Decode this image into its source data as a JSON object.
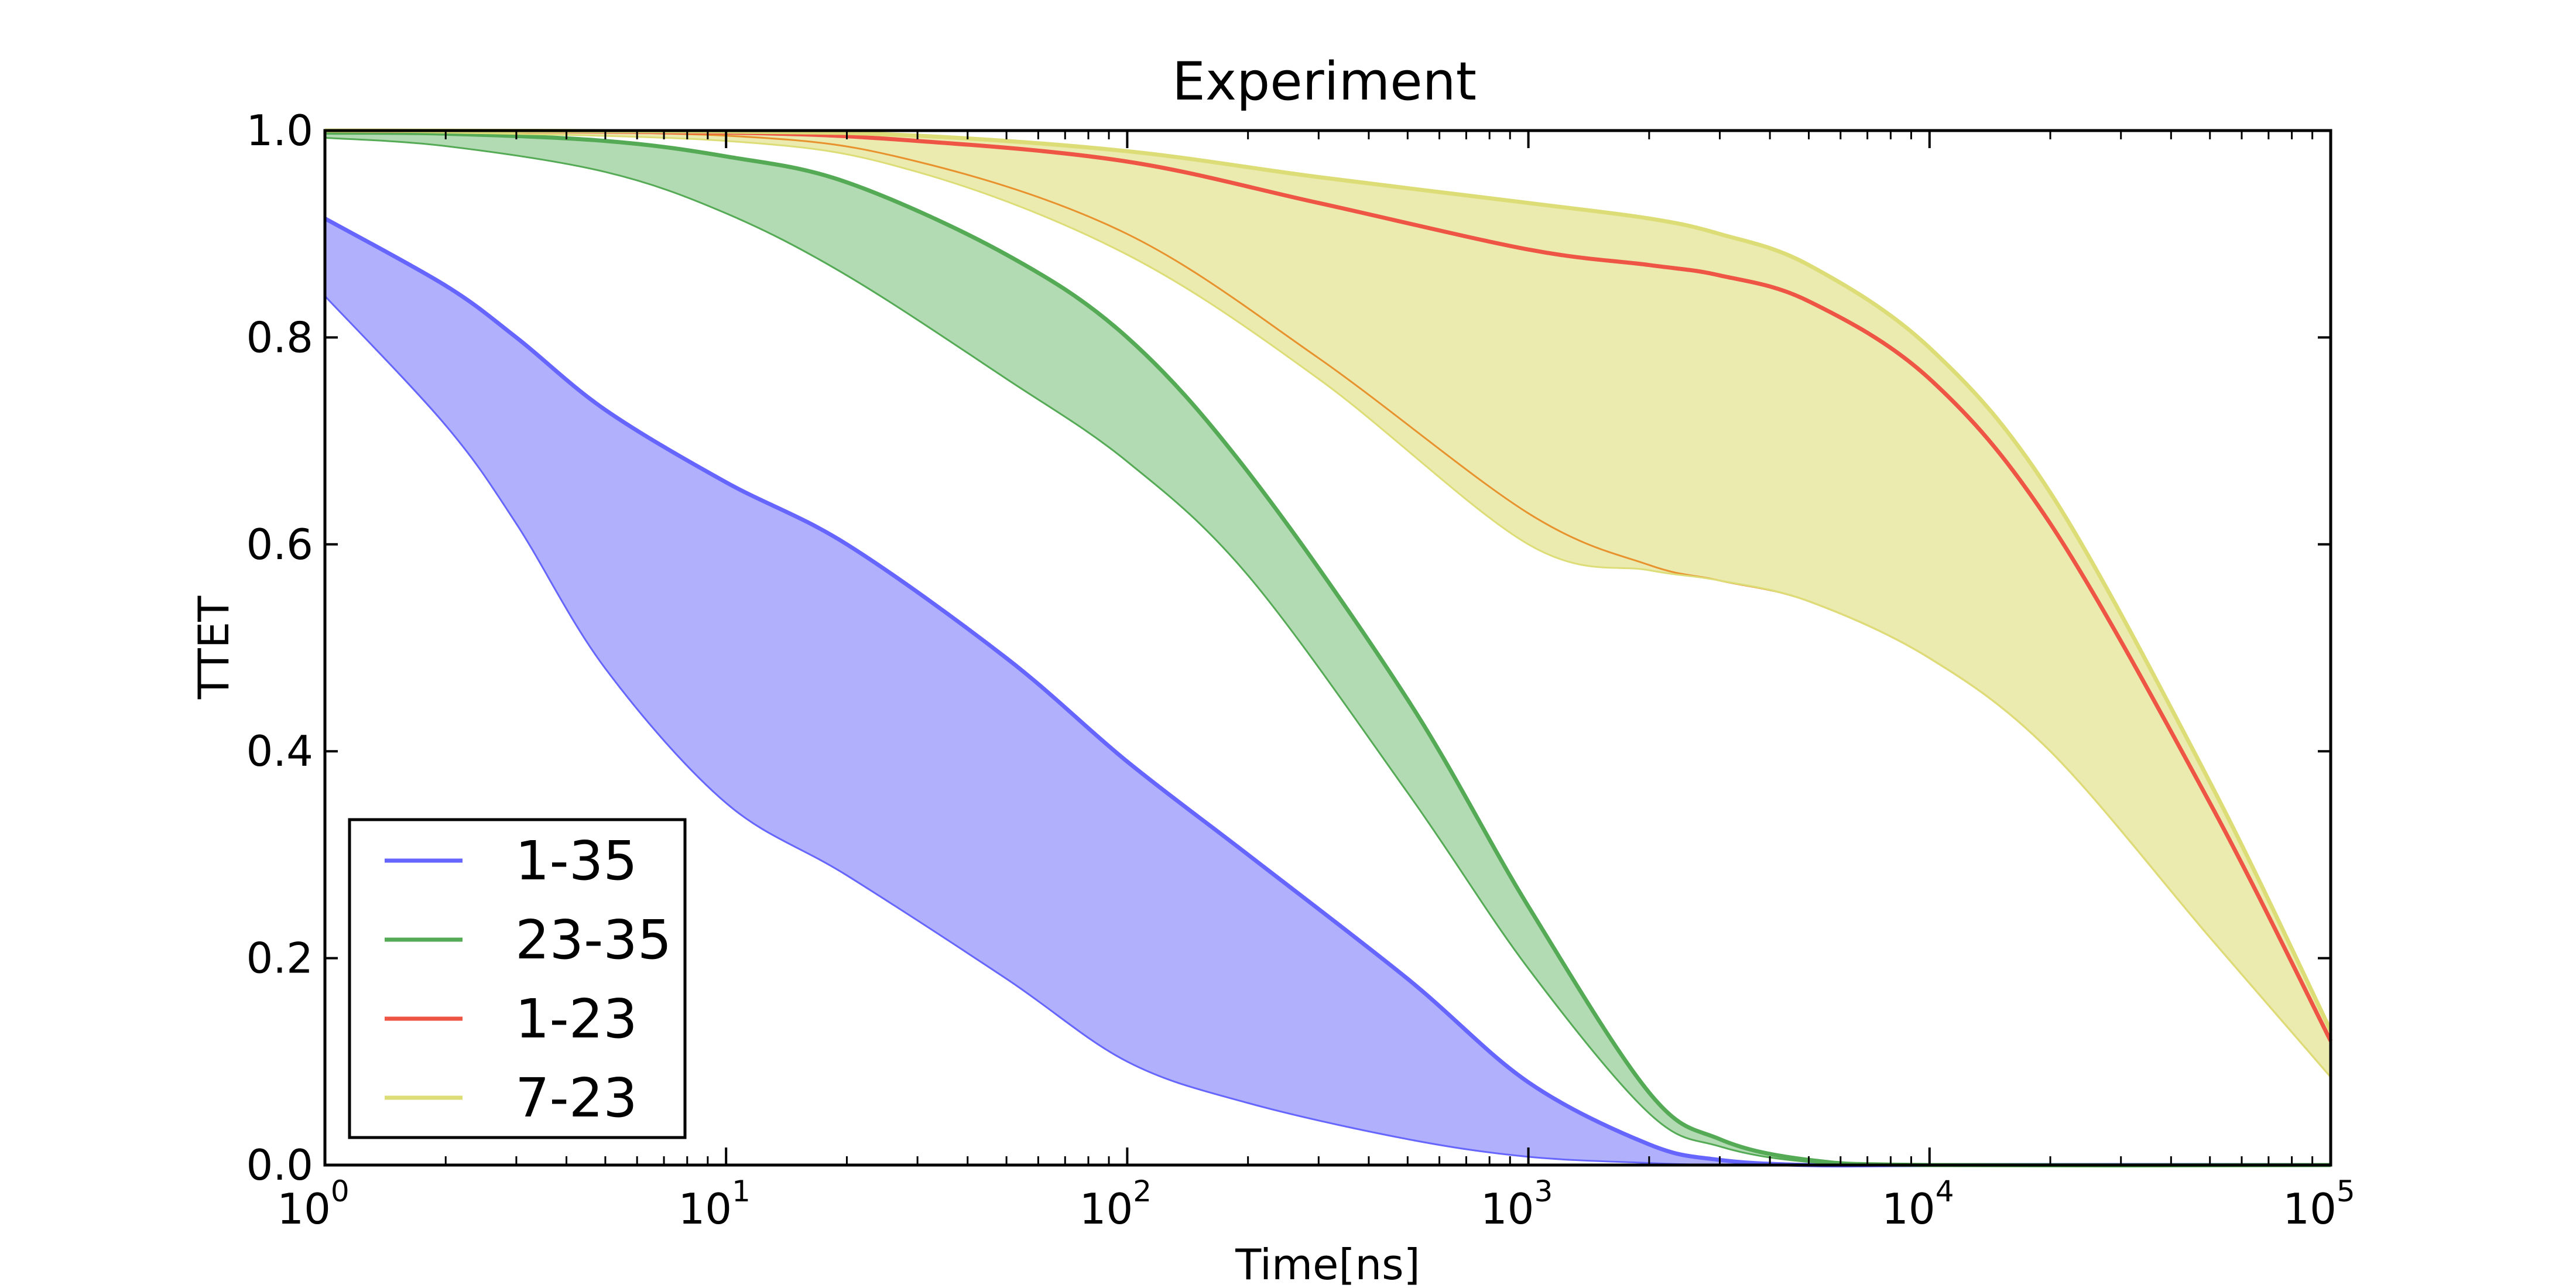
{
  "chart_data": {
    "type": "area",
    "title": "Experiment",
    "xlabel": "Time[ns]",
    "ylabel": "TTET",
    "x_scale": "log",
    "xlim": [
      1,
      100000
    ],
    "ylim": [
      0.0,
      1.0
    ],
    "x_ticks": [
      {
        "value": 1,
        "base": "10",
        "exp": "0"
      },
      {
        "value": 10,
        "base": "10",
        "exp": "1"
      },
      {
        "value": 100,
        "base": "10",
        "exp": "2"
      },
      {
        "value": 1000,
        "base": "10",
        "exp": "3"
      },
      {
        "value": 10000,
        "base": "10",
        "exp": "4"
      },
      {
        "value": 100000,
        "base": "10",
        "exp": "5"
      }
    ],
    "y_ticks": [
      {
        "value": 0.0,
        "label": "0.0"
      },
      {
        "value": 0.2,
        "label": "0.2"
      },
      {
        "value": 0.4,
        "label": "0.4"
      },
      {
        "value": 0.6,
        "label": "0.6"
      },
      {
        "value": 0.8,
        "label": "0.8"
      },
      {
        "value": 1.0,
        "label": "1.0"
      }
    ],
    "grid": false,
    "legend_position": "lower-left",
    "series": [
      {
        "name": "1-35",
        "color": "#6666ff",
        "fill": "#b0b0fd",
        "x": [
          1,
          2,
          3,
          5,
          10,
          20,
          50,
          100,
          200,
          500,
          1000,
          2000,
          3000,
          5000,
          10000,
          100000
        ],
        "upper": [
          0.915,
          0.85,
          0.8,
          0.73,
          0.66,
          0.6,
          0.49,
          0.39,
          0.3,
          0.18,
          0.08,
          0.02,
          0.005,
          0.0,
          0.0,
          0.0
        ],
        "lower": [
          0.84,
          0.715,
          0.62,
          0.48,
          0.35,
          0.28,
          0.18,
          0.1,
          0.06,
          0.025,
          0.008,
          0.002,
          0.0,
          0.0,
          0.0,
          0.0
        ]
      },
      {
        "name": "23-35",
        "color": "#55aa55",
        "fill": "#b3dbb3",
        "x": [
          1,
          2,
          5,
          10,
          20,
          50,
          100,
          200,
          500,
          1000,
          2000,
          3000,
          5000,
          10000,
          100000
        ],
        "upper": [
          0.998,
          0.997,
          0.99,
          0.975,
          0.95,
          0.88,
          0.8,
          0.67,
          0.45,
          0.25,
          0.07,
          0.025,
          0.005,
          0.0,
          0.0
        ],
        "lower": [
          0.993,
          0.985,
          0.96,
          0.92,
          0.86,
          0.76,
          0.68,
          0.57,
          0.36,
          0.19,
          0.05,
          0.018,
          0.003,
          0.0,
          0.0
        ]
      },
      {
        "name": "1-23",
        "color": "#ee5544",
        "fill": "#ecb37a",
        "edge": "#e8922e",
        "x": [
          1,
          10,
          30,
          100,
          300,
          1000,
          2000,
          3000,
          5000,
          10000,
          20000,
          50000,
          100000
        ],
        "upper": [
          1.0,
          0.998,
          0.99,
          0.97,
          0.93,
          0.885,
          0.87,
          0.86,
          0.835,
          0.76,
          0.62,
          0.35,
          0.12
        ],
        "lower": [
          1.0,
          0.995,
          0.97,
          0.9,
          0.78,
          0.63,
          0.58,
          0.565,
          0.545,
          0.49,
          0.4,
          0.22,
          0.085
        ]
      },
      {
        "name": "7-23",
        "color": "#dddd77",
        "fill": "#ebebb0",
        "x": [
          1,
          10,
          30,
          100,
          300,
          1000,
          2000,
          3000,
          5000,
          10000,
          20000,
          50000,
          100000
        ],
        "upper": [
          1.0,
          0.999,
          0.995,
          0.98,
          0.955,
          0.93,
          0.915,
          0.9,
          0.87,
          0.79,
          0.65,
          0.37,
          0.13
        ],
        "lower": [
          1.0,
          0.99,
          0.96,
          0.88,
          0.76,
          0.6,
          0.575,
          0.565,
          0.545,
          0.49,
          0.4,
          0.22,
          0.085
        ]
      }
    ]
  }
}
